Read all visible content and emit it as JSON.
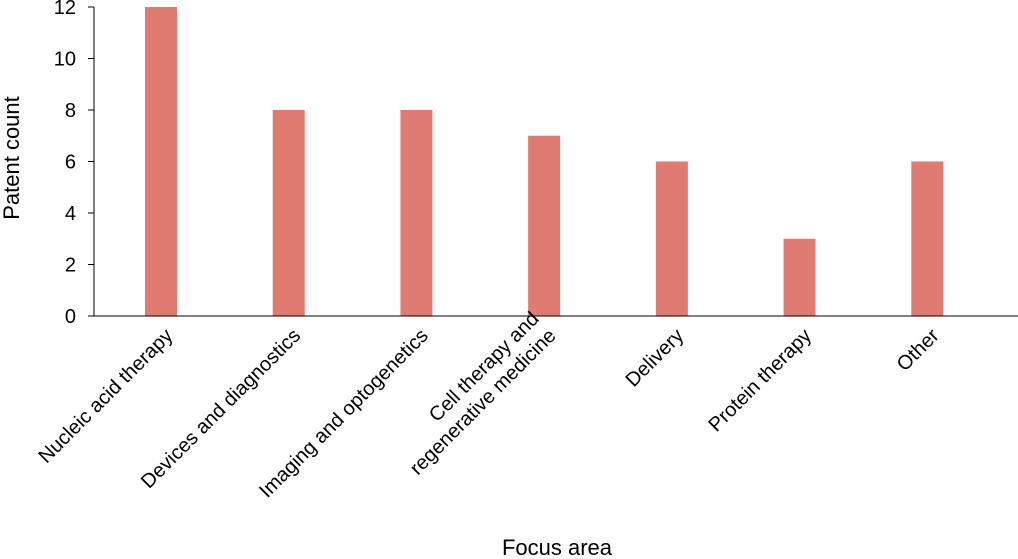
{
  "chart_data": {
    "type": "bar",
    "categories": [
      [
        "Nucleic acid therapy"
      ],
      [
        "Devices and diagnostics"
      ],
      [
        "Imaging and optogenetics"
      ],
      [
        "Cell therapy and",
        "regenerative medicine"
      ],
      [
        "Delivery"
      ],
      [
        "Protein therapy"
      ],
      [
        "Other"
      ]
    ],
    "values": [
      12,
      8,
      8,
      7,
      6,
      3,
      6
    ],
    "title": "",
    "xlabel": "Focus area",
    "ylabel": "Patent count",
    "ylim": [
      0,
      12
    ],
    "yticks": [
      "0",
      "2",
      "4",
      "6",
      "8",
      "10",
      "12"
    ],
    "bar_color": "#e07b70",
    "grid": false,
    "legend": "none"
  }
}
